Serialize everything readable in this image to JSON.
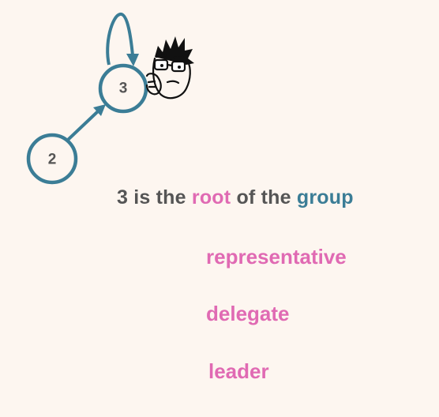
{
  "nodes": [
    {
      "id": "node-3",
      "label": "3"
    },
    {
      "id": "node-2",
      "label": "2"
    }
  ],
  "edges": [
    {
      "from": "2",
      "to": "3"
    },
    {
      "from": "3",
      "to": "3"
    }
  ],
  "statement": {
    "part1": "3 is the ",
    "root_word": "root",
    "part2": " of the ",
    "group_word": "group"
  },
  "synonyms": [
    "representative",
    "delegate",
    "leader"
  ],
  "colors": {
    "node_stroke": "#3b7d96",
    "highlight_pink": "#e06ab3",
    "highlight_teal": "#3b7d96",
    "text_gray": "#555555",
    "background": "#fdf6f0"
  },
  "icons": [
    "thinking-face-icon"
  ]
}
